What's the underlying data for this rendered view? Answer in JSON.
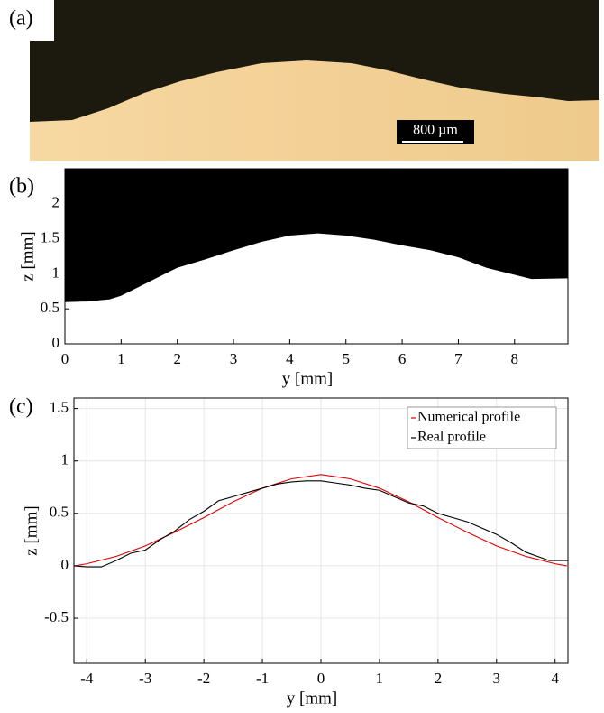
{
  "chart_data": [
    {
      "type": "image",
      "label": "(a)",
      "scale_bar": "800 µm"
    },
    {
      "type": "area",
      "label": "(b)",
      "xlabel": "y [mm]",
      "ylabel": "z [mm]",
      "x": [
        0,
        0.4,
        0.8,
        1.0,
        1.3,
        1.6,
        2.0,
        2.5,
        3.0,
        3.5,
        4.0,
        4.5,
        5.0,
        5.5,
        6.0,
        6.5,
        7.0,
        7.5,
        8.0,
        8.3,
        8.95
      ],
      "values": [
        0.59,
        0.6,
        0.63,
        0.68,
        0.8,
        0.92,
        1.08,
        1.2,
        1.33,
        1.45,
        1.54,
        1.57,
        1.54,
        1.48,
        1.4,
        1.33,
        1.23,
        1.08,
        0.98,
        0.92,
        0.93
      ],
      "xlim": [
        0,
        8.95
      ],
      "ylim": [
        0,
        2.5
      ],
      "xticks": [
        0,
        1,
        2,
        3,
        4,
        5,
        6,
        7,
        8
      ],
      "yticks": [
        0,
        0.5,
        1,
        1.5,
        2
      ]
    },
    {
      "type": "line",
      "label": "(c)",
      "xlabel": "y [mm]",
      "ylabel": "z [mm]",
      "grid": true,
      "legend": "upper right",
      "xlim": [
        -4.22,
        4.22
      ],
      "ylim": [
        -0.93,
        1.6
      ],
      "xticks": [
        -4,
        -3,
        -2,
        -1,
        0,
        1,
        2,
        3,
        4
      ],
      "yticks": [
        -0.5,
        0,
        0.5,
        1,
        1.5
      ],
      "series": [
        {
          "name": "Numerical profile",
          "color": "#e00000",
          "x": [
            -4.2,
            -4,
            -3.5,
            -3,
            -2.5,
            -2,
            -1.5,
            -1,
            -0.5,
            0,
            0.5,
            1,
            1.5,
            2,
            2.5,
            3,
            3.5,
            4,
            4.2
          ],
          "values": [
            0,
            0.02,
            0.09,
            0.19,
            0.32,
            0.46,
            0.61,
            0.74,
            0.83,
            0.87,
            0.83,
            0.74,
            0.61,
            0.46,
            0.32,
            0.19,
            0.09,
            0.02,
            0
          ]
        },
        {
          "name": "Real profile",
          "color": "#000000",
          "x": [
            -4.22,
            -4,
            -3.75,
            -3.5,
            -3.25,
            -3,
            -2.75,
            -2.5,
            -2.25,
            -2,
            -1.75,
            -1.5,
            -1.25,
            -1,
            -0.75,
            -0.5,
            -0.25,
            0,
            0.25,
            0.5,
            0.75,
            1,
            1.25,
            1.5,
            1.75,
            2,
            2.25,
            2.5,
            2.75,
            3,
            3.25,
            3.5,
            3.75,
            3.9,
            4,
            4.22
          ],
          "values": [
            0,
            -0.01,
            -0.01,
            0.05,
            0.12,
            0.15,
            0.25,
            0.33,
            0.44,
            0.52,
            0.62,
            0.66,
            0.7,
            0.74,
            0.78,
            0.8,
            0.81,
            0.81,
            0.79,
            0.77,
            0.74,
            0.72,
            0.66,
            0.6,
            0.57,
            0.5,
            0.46,
            0.42,
            0.36,
            0.3,
            0.22,
            0.13,
            0.08,
            0.05,
            0.05,
            0.05
          ]
        }
      ]
    }
  ]
}
